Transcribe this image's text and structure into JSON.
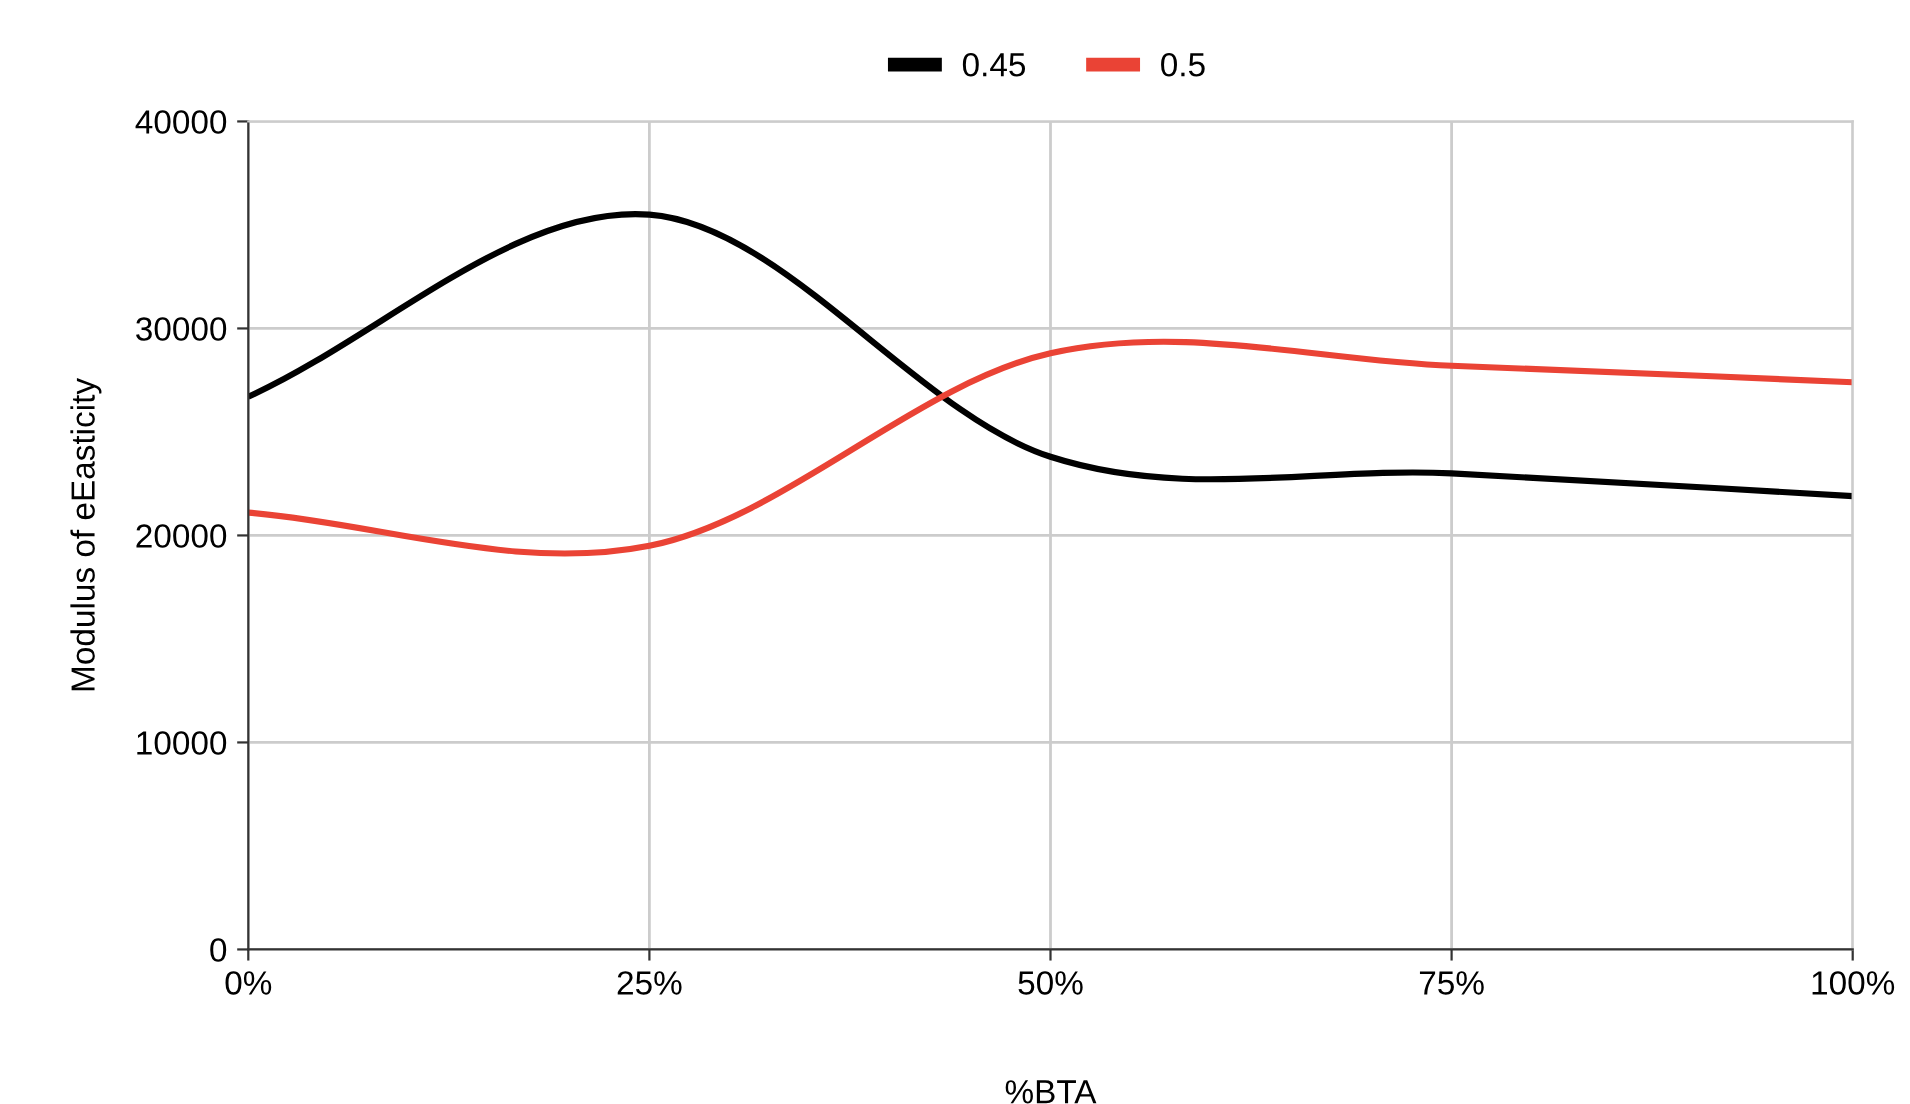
{
  "chart_data": {
    "type": "line",
    "xlabel": "%BTA",
    "ylabel": "Modulus of eEasticity",
    "x": [
      0,
      25,
      50,
      75,
      100
    ],
    "series": [
      {
        "name": "0.45",
        "color": "#000000",
        "values": [
          26700,
          35500,
          23800,
          23000,
          21900
        ]
      },
      {
        "name": "0.5",
        "color": "#ea4335",
        "values": [
          21100,
          19500,
          28800,
          28200,
          27400
        ]
      }
    ],
    "xlim": [
      0,
      100
    ],
    "xticks": [
      {
        "value": 0,
        "label": "0%"
      },
      {
        "value": 25,
        "label": "25%"
      },
      {
        "value": 50,
        "label": "50%"
      },
      {
        "value": 75,
        "label": "75%"
      },
      {
        "value": 100,
        "label": "100%"
      }
    ],
    "ylim": [
      0,
      40000
    ],
    "yticks": [
      0,
      10000,
      20000,
      30000,
      40000
    ],
    "grid": true,
    "legend": "top"
  }
}
